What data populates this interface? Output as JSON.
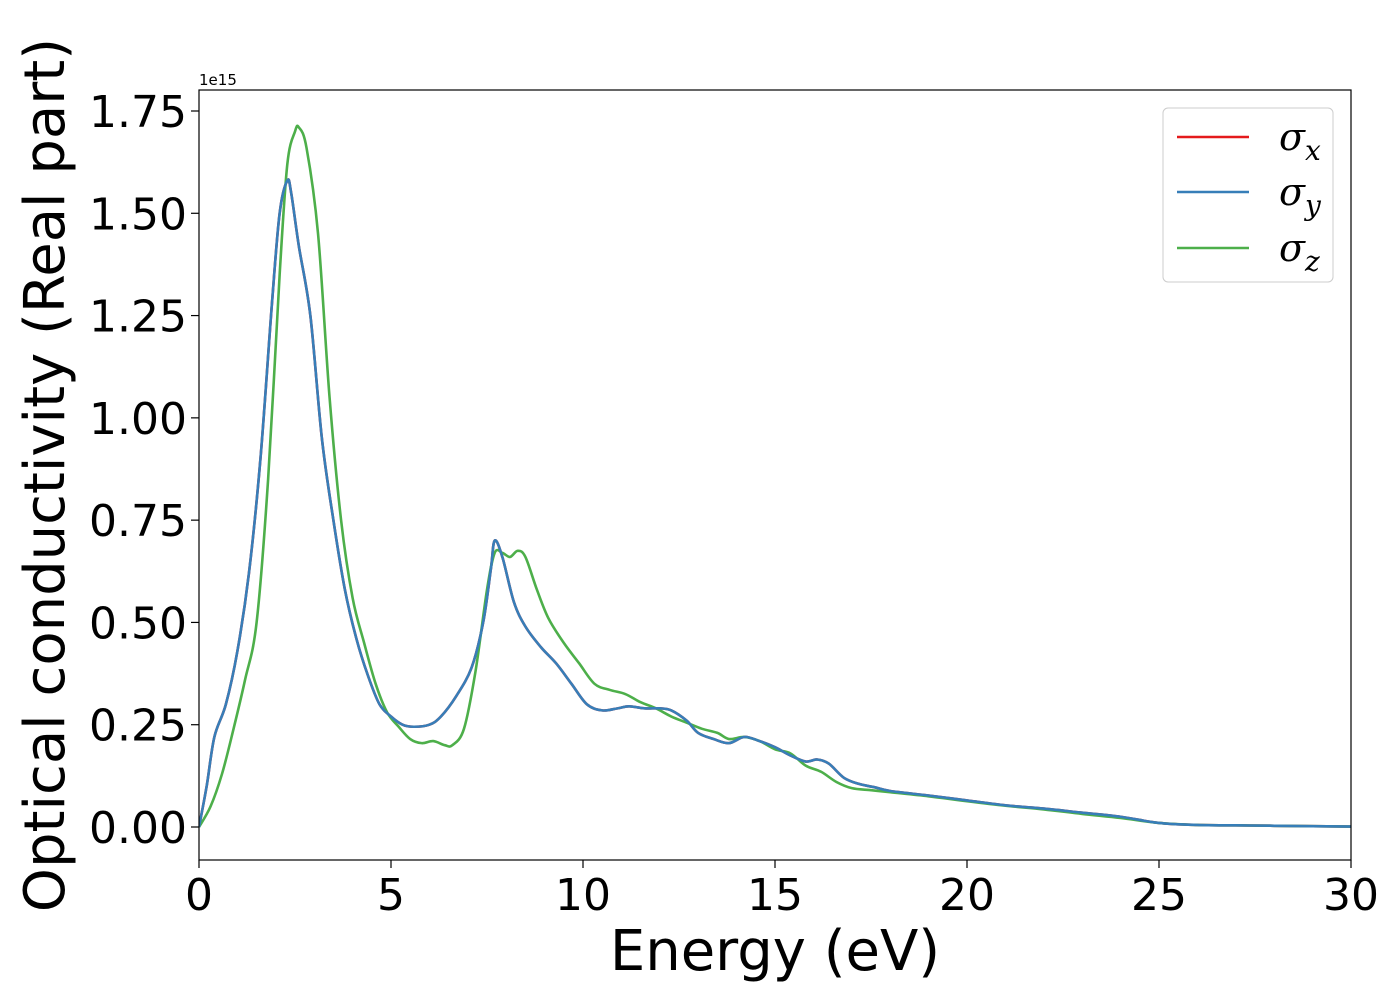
{
  "chart_data": {
    "type": "line",
    "title": "",
    "xlabel": "Energy (eV)",
    "ylabel": "Optical conductivity (Real part)",
    "y_offset_label": "1e15",
    "xlim": [
      0,
      30
    ],
    "ylim": [
      -0.08,
      1.8
    ],
    "xticks": [
      0,
      5,
      10,
      15,
      20,
      25,
      30
    ],
    "yticks": [
      0.0,
      0.25,
      0.5,
      0.75,
      1.0,
      1.25,
      1.5,
      1.75
    ],
    "xtick_labels": [
      "0",
      "5",
      "10",
      "15",
      "20",
      "25",
      "30"
    ],
    "ytick_labels": [
      "0.00",
      "0.25",
      "0.50",
      "0.75",
      "1.00",
      "1.25",
      "1.50",
      "1.75"
    ],
    "grid": false,
    "legend_position": "top-right",
    "series": [
      {
        "name": "σx",
        "base": "σ",
        "sub": "x",
        "color": "#e41a1c",
        "x": [
          0,
          0.2,
          0.4,
          0.7,
          1.0,
          1.3,
          1.6,
          1.9,
          2.1,
          2.3,
          2.4,
          2.6,
          2.9,
          3.2,
          3.5,
          3.8,
          4.1,
          4.4,
          4.7,
          5.0,
          5.3,
          5.6,
          6.0,
          6.3,
          6.7,
          7.1,
          7.4,
          7.6,
          7.7,
          7.9,
          8.2,
          8.5,
          8.9,
          9.3,
          9.7,
          10.1,
          10.5,
          10.9,
          11.2,
          11.6,
          12.0,
          12.3,
          12.7,
          13.0,
          13.4,
          13.8,
          14.2,
          14.6,
          15.0,
          15.4,
          15.8,
          16.1,
          16.4,
          16.8,
          17.2,
          17.6,
          18.0,
          19.0,
          20.0,
          21.0,
          22.0,
          23.0,
          24.0,
          25.0,
          26.0,
          27.0,
          28.0,
          29.0,
          30.0
        ],
        "y": [
          0.0,
          0.1,
          0.22,
          0.3,
          0.43,
          0.62,
          0.9,
          1.28,
          1.5,
          1.58,
          1.55,
          1.42,
          1.25,
          0.95,
          0.75,
          0.58,
          0.46,
          0.37,
          0.3,
          0.27,
          0.25,
          0.245,
          0.25,
          0.27,
          0.32,
          0.39,
          0.5,
          0.63,
          0.7,
          0.66,
          0.55,
          0.49,
          0.44,
          0.4,
          0.35,
          0.3,
          0.285,
          0.29,
          0.295,
          0.29,
          0.29,
          0.285,
          0.26,
          0.23,
          0.215,
          0.205,
          0.22,
          0.21,
          0.195,
          0.175,
          0.16,
          0.165,
          0.155,
          0.12,
          0.105,
          0.097,
          0.088,
          0.077,
          0.065,
          0.053,
          0.045,
          0.035,
          0.025,
          0.01,
          0.005,
          0.004,
          0.003,
          0.002,
          0.001
        ]
      },
      {
        "name": "σy",
        "base": "σ",
        "sub": "y",
        "color": "#377eb8",
        "x": [
          0,
          0.2,
          0.4,
          0.7,
          1.0,
          1.3,
          1.6,
          1.9,
          2.1,
          2.3,
          2.4,
          2.6,
          2.9,
          3.2,
          3.5,
          3.8,
          4.1,
          4.4,
          4.7,
          5.0,
          5.3,
          5.6,
          6.0,
          6.3,
          6.7,
          7.1,
          7.4,
          7.6,
          7.7,
          7.9,
          8.2,
          8.5,
          8.9,
          9.3,
          9.7,
          10.1,
          10.5,
          10.9,
          11.2,
          11.6,
          12.0,
          12.3,
          12.7,
          13.0,
          13.4,
          13.8,
          14.2,
          14.6,
          15.0,
          15.4,
          15.8,
          16.1,
          16.4,
          16.8,
          17.2,
          17.6,
          18.0,
          19.0,
          20.0,
          21.0,
          22.0,
          23.0,
          24.0,
          25.0,
          26.0,
          27.0,
          28.0,
          29.0,
          30.0
        ],
        "y": [
          0.0,
          0.1,
          0.22,
          0.3,
          0.43,
          0.62,
          0.9,
          1.28,
          1.5,
          1.58,
          1.55,
          1.42,
          1.25,
          0.95,
          0.75,
          0.58,
          0.46,
          0.37,
          0.3,
          0.27,
          0.25,
          0.245,
          0.25,
          0.27,
          0.32,
          0.39,
          0.5,
          0.63,
          0.7,
          0.66,
          0.55,
          0.49,
          0.44,
          0.4,
          0.35,
          0.3,
          0.285,
          0.29,
          0.295,
          0.29,
          0.29,
          0.285,
          0.26,
          0.23,
          0.215,
          0.205,
          0.22,
          0.21,
          0.195,
          0.175,
          0.16,
          0.165,
          0.155,
          0.12,
          0.105,
          0.097,
          0.088,
          0.077,
          0.065,
          0.053,
          0.045,
          0.035,
          0.025,
          0.01,
          0.005,
          0.004,
          0.003,
          0.002,
          0.001
        ]
      },
      {
        "name": "σz",
        "base": "σ",
        "sub": "z",
        "color": "#4daf4a",
        "x": [
          0,
          0.3,
          0.6,
          0.9,
          1.2,
          1.5,
          1.8,
          2.1,
          2.3,
          2.5,
          2.6,
          2.8,
          3.1,
          3.4,
          3.7,
          4.0,
          4.3,
          4.6,
          4.9,
          5.2,
          5.5,
          5.8,
          6.1,
          6.4,
          6.6,
          6.9,
          7.2,
          7.5,
          7.7,
          7.9,
          8.1,
          8.3,
          8.5,
          8.8,
          9.1,
          9.5,
          9.9,
          10.3,
          10.7,
          11.1,
          11.5,
          11.9,
          12.3,
          12.7,
          13.1,
          13.5,
          13.8,
          14.2,
          14.6,
          15.0,
          15.4,
          15.8,
          16.2,
          16.6,
          17.0,
          17.5,
          18.0,
          19.0,
          20.0,
          21.0,
          22.0,
          23.0,
          24.0,
          25.0,
          26.0,
          27.0,
          28.0,
          29.0,
          30.0
        ],
        "y": [
          0.0,
          0.05,
          0.13,
          0.24,
          0.36,
          0.5,
          0.85,
          1.35,
          1.62,
          1.7,
          1.71,
          1.66,
          1.45,
          1.05,
          0.75,
          0.56,
          0.45,
          0.35,
          0.28,
          0.245,
          0.215,
          0.205,
          0.21,
          0.2,
          0.2,
          0.24,
          0.38,
          0.58,
          0.67,
          0.67,
          0.66,
          0.675,
          0.66,
          0.58,
          0.51,
          0.45,
          0.4,
          0.35,
          0.335,
          0.325,
          0.305,
          0.29,
          0.27,
          0.255,
          0.24,
          0.23,
          0.215,
          0.22,
          0.21,
          0.19,
          0.18,
          0.15,
          0.135,
          0.11,
          0.095,
          0.09,
          0.085,
          0.075,
          0.063,
          0.052,
          0.043,
          0.032,
          0.022,
          0.01,
          0.005,
          0.004,
          0.003,
          0.002,
          0.001
        ]
      }
    ]
  }
}
